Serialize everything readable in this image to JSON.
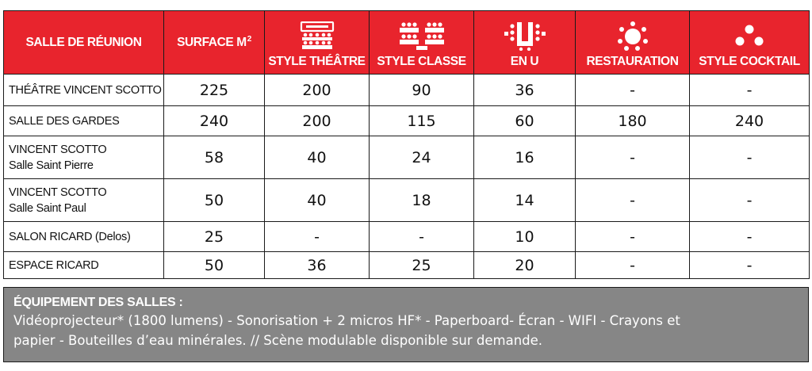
{
  "colors": {
    "header_bg": "#e8242d",
    "equipment_bg": "#868686",
    "border": "#1a1a1a"
  },
  "headers": {
    "room": "SALLE DE RÉUNION",
    "surface": "SURFACE M",
    "surface_sup": "2",
    "theatre": {
      "label": "STYLE THÉÂTRE",
      "icon": "theatre-seating-icon"
    },
    "classe": {
      "label": "STYLE CLASSE",
      "icon": "classroom-seating-icon"
    },
    "en_u": {
      "label": "EN U",
      "icon": "u-shape-seating-icon"
    },
    "restauration": {
      "label": "RESTAURATION",
      "icon": "banquet-table-icon"
    },
    "cocktail": {
      "label": "STYLE COCKTAIL",
      "icon": "cocktail-dots-icon"
    }
  },
  "rows": [
    {
      "name": [
        "THÉÂTRE VINCENT SCOTTO"
      ],
      "surface": "225",
      "theatre": "200",
      "classe": "90",
      "en_u": "36",
      "restauration": "-",
      "cocktail": "-"
    },
    {
      "name": [
        "SALLE DES GARDES"
      ],
      "surface": "240",
      "theatre": "200",
      "classe": "115",
      "en_u": "60",
      "restauration": "180",
      "cocktail": "240"
    },
    {
      "name": [
        "VINCENT SCOTTO",
        "Salle Saint Pierre"
      ],
      "surface": "58",
      "theatre": "40",
      "classe": "24",
      "en_u": "16",
      "restauration": "-",
      "cocktail": "-"
    },
    {
      "name": [
        "VINCENT SCOTTO",
        "Salle Saint Paul"
      ],
      "surface": "50",
      "theatre": "40",
      "classe": "18",
      "en_u": "14",
      "restauration": "-",
      "cocktail": "-"
    },
    {
      "name": [
        "SALON RICARD (Delos)"
      ],
      "surface": "25",
      "theatre": "-",
      "classe": "-",
      "en_u": "10",
      "restauration": "-",
      "cocktail": "-"
    },
    {
      "name": [
        "ESPACE RICARD"
      ],
      "surface": "50",
      "theatre": "36",
      "classe": "25",
      "en_u": "20",
      "restauration": "-",
      "cocktail": "-"
    }
  ],
  "equipment": {
    "title": "ÉQUIPEMENT DES SALLES :",
    "line1": "Vidéoprojecteur* (1800 lumens) - Sonorisation + 2 micros HF* - Paperboard- Écran - WIFI - Crayons et",
    "line2": "papier - Bouteilles d’eau minérales. // Scène modulable disponible sur demande."
  }
}
